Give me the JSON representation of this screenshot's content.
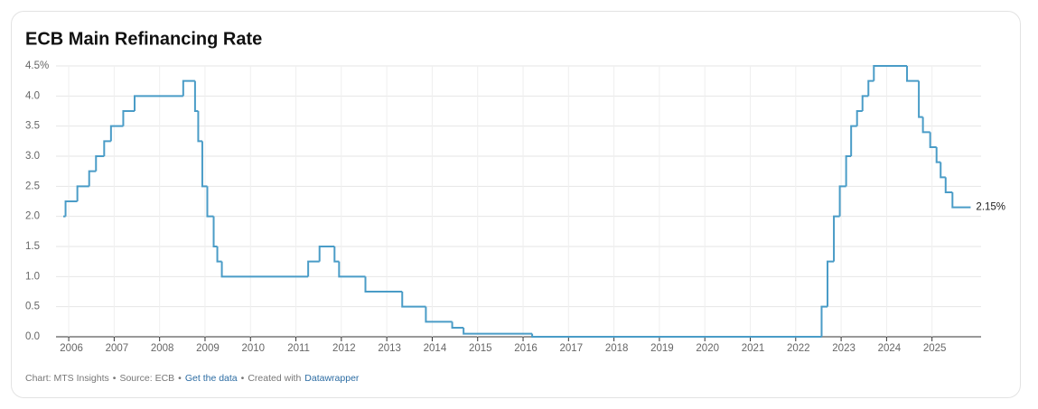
{
  "chart_data": {
    "type": "step-line",
    "title": "ECB Main Refinancing Rate",
    "x": [
      2005.88,
      2005.93,
      2006.19,
      2006.45,
      2006.6,
      2006.78,
      2006.93,
      2007.2,
      2007.45,
      2008.52,
      2008.78,
      2008.85,
      2008.94,
      2009.05,
      2009.19,
      2009.27,
      2009.37,
      2011.27,
      2011.52,
      2011.85,
      2011.95,
      2012.53,
      2013.34,
      2013.86,
      2014.44,
      2014.69,
      2016.2,
      2022.57,
      2022.7,
      2022.84,
      2022.97,
      2023.11,
      2023.22,
      2023.35,
      2023.47,
      2023.6,
      2023.72,
      2024.45,
      2024.71,
      2024.8,
      2024.96,
      2025.1,
      2025.19,
      2025.3,
      2025.45,
      2025.85
    ],
    "series": [
      {
        "color": "#4a9cc7",
        "values": [
          2.0,
          2.25,
          2.5,
          2.75,
          3.0,
          3.25,
          3.5,
          3.75,
          4.0,
          4.25,
          3.75,
          3.25,
          2.5,
          2.0,
          1.5,
          1.25,
          1.0,
          1.25,
          1.5,
          1.25,
          1.0,
          0.75,
          0.5,
          0.25,
          0.15,
          0.05,
          0.0,
          0.5,
          1.25,
          2.0,
          2.5,
          3.0,
          3.5,
          3.75,
          4.0,
          4.25,
          4.5,
          4.25,
          3.65,
          3.4,
          3.15,
          2.9,
          2.65,
          2.4,
          2.15,
          2.15
        ],
        "value_labels": [
          null,
          null,
          null,
          null,
          null,
          null,
          null,
          null,
          null,
          null,
          null,
          null,
          null,
          null,
          null,
          null,
          null,
          null,
          null,
          null,
          null,
          null,
          null,
          null,
          null,
          null,
          null,
          null,
          null,
          null,
          null,
          null,
          null,
          null,
          null,
          null,
          null,
          null,
          null,
          null,
          null,
          null,
          null,
          null,
          null,
          "2.15%"
        ]
      }
    ],
    "xlim": [
      2005.72,
      2026.08
    ],
    "xticks": [
      2006,
      2007,
      2008,
      2009,
      2010,
      2011,
      2012,
      2013,
      2014,
      2015,
      2016,
      2017,
      2018,
      2019,
      2020,
      2021,
      2022,
      2023,
      2024,
      2025
    ],
    "ylim": [
      0,
      4.5
    ],
    "yticks": [
      {
        "value": 0,
        "label": "0.0"
      },
      0.5,
      {
        "value": 1,
        "label": "1.0"
      },
      1.5,
      {
        "value": 2,
        "label": "2.0"
      },
      2.5,
      {
        "value": 3,
        "label": "3.0"
      },
      3.5,
      {
        "value": 4,
        "label": "4.0"
      },
      {
        "value": 4.5,
        "label": "4.5%"
      }
    ],
    "grid": true
  },
  "footer": {
    "chart_credit": "Chart: MTS Insights",
    "separator": "•",
    "source": "Source: ECB",
    "get_data": "Get the data",
    "created_with": "Created with",
    "tool": "Datawrapper"
  }
}
